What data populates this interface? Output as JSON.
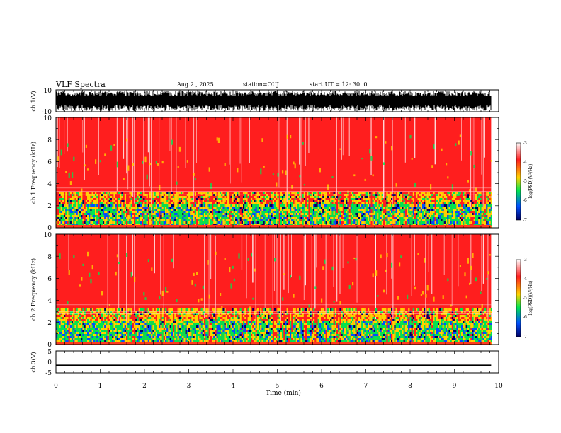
{
  "header": {
    "title": "VLF Spectra",
    "date": "Aug.2  , 2025",
    "station": "station=OUJ",
    "start": "start  UT  =   12: 30: 0"
  },
  "colorbar": {
    "label": "log(PSD)(V²/Hz)",
    "ticks": [
      "-3",
      "-4",
      "-5",
      "-6",
      "-7"
    ],
    "stops": [
      "#ffffff",
      "#ff1e1e",
      "#ffd200",
      "#00e650",
      "#0050ff",
      "#000064"
    ]
  },
  "chart_data": {
    "type": "heatmap",
    "title": "VLF Spectra",
    "xlabel": "Time  (min)",
    "xlim": [
      0,
      10
    ],
    "data_end_min": 9.83,
    "x_ticks": [
      "0",
      "1",
      "2",
      "3",
      "4",
      "5",
      "6",
      "7",
      "8",
      "9",
      "10"
    ],
    "panels": [
      {
        "id": "ch1-waveform",
        "kind": "waveform",
        "ylabel": "ch.1(V)",
        "ylim": [
          -10,
          10
        ],
        "y_ticks": [
          "10",
          "-10"
        ]
      },
      {
        "id": "ch1-spectrogram",
        "kind": "spectrogram",
        "ylabel": "ch.1  Frequency  (kHz)",
        "ylim": [
          0,
          10
        ],
        "y_ticks": [
          "10",
          "8",
          "6",
          "4",
          "2",
          "0"
        ],
        "colorbar_range": [
          -7,
          -3
        ]
      },
      {
        "id": "ch2-spectrogram",
        "kind": "spectrogram",
        "ylabel": "ch.2  Frequency  (kHz)",
        "ylim": [
          0,
          10
        ],
        "y_ticks": [
          "10",
          "8",
          "6",
          "4",
          "2",
          "0"
        ],
        "colorbar_range": [
          -7,
          -3
        ]
      },
      {
        "id": "ch3-waveform",
        "kind": "waveform",
        "ylabel": "ch.3(V)",
        "ylim": [
          -5,
          5
        ],
        "y_ticks": [
          "5",
          "0",
          "-5"
        ],
        "level": -1.5
      }
    ]
  }
}
